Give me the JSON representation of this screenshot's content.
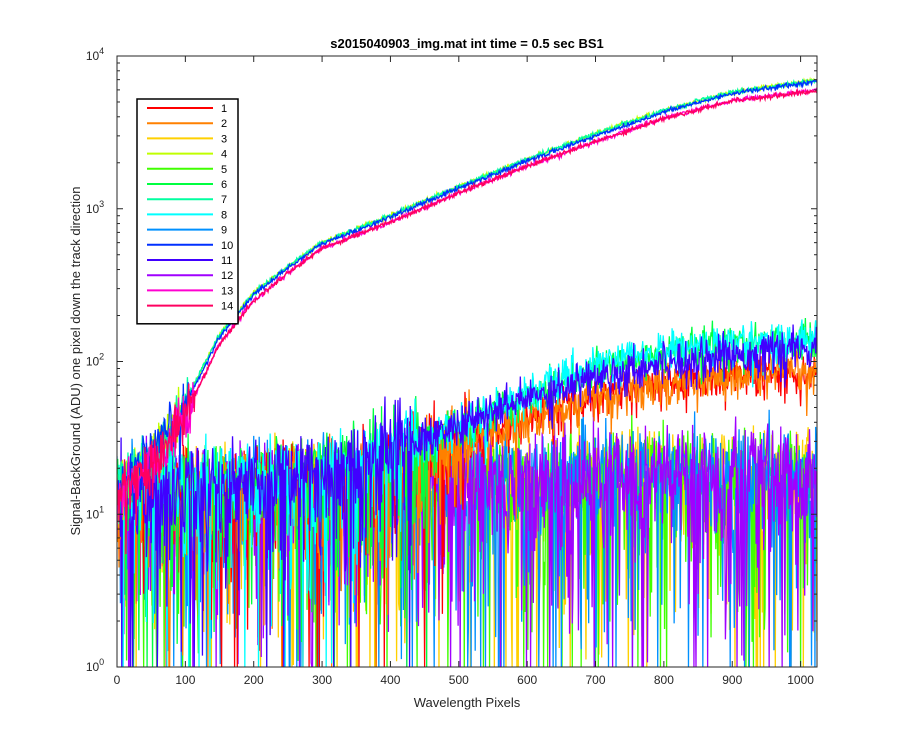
{
  "chart_data": {
    "type": "line",
    "title": "s2015040903_img.mat int time = 0.5 sec   BS1",
    "xlabel": "Wavelength Pixels",
    "ylabel": "Signal-BackGround (ADU) one pixel down the track direction",
    "xlim": [
      0,
      1024
    ],
    "ylim": [
      1,
      10000
    ],
    "yscale": "log",
    "xticks": [
      0,
      100,
      200,
      300,
      400,
      500,
      600,
      700,
      800,
      900,
      1000
    ],
    "yticks": [
      {
        "value": 1,
        "base": "10",
        "exp": "0"
      },
      {
        "value": 10,
        "base": "10",
        "exp": "1"
      },
      {
        "value": 100,
        "base": "10",
        "exp": "2"
      },
      {
        "value": 1000,
        "base": "10",
        "exp": "3"
      },
      {
        "value": 10000,
        "base": "10",
        "exp": "4"
      }
    ],
    "grid": false,
    "legend_position": "top-left",
    "series": [
      {
        "name": "1",
        "color": "#ff0000",
        "profile": "mid",
        "level": [
          [
            0,
            12
          ],
          [
            300,
            14
          ],
          [
            400,
            20
          ],
          [
            500,
            28
          ],
          [
            600,
            42
          ],
          [
            700,
            60
          ],
          [
            800,
            72
          ],
          [
            900,
            82
          ],
          [
            1024,
            85
          ]
        ]
      },
      {
        "name": "2",
        "color": "#ff8000",
        "profile": "mid",
        "level": [
          [
            0,
            12
          ],
          [
            300,
            14
          ],
          [
            400,
            20
          ],
          [
            500,
            28
          ],
          [
            600,
            42
          ],
          [
            700,
            60
          ],
          [
            800,
            72
          ],
          [
            900,
            82
          ],
          [
            1024,
            85
          ]
        ]
      },
      {
        "name": "3",
        "color": "#ffd000",
        "profile": "flat",
        "level": [
          [
            0,
            12
          ],
          [
            500,
            16
          ],
          [
            800,
            18
          ],
          [
            1024,
            17
          ]
        ]
      },
      {
        "name": "4",
        "color": "#c0ff00",
        "profile": "high",
        "level": [
          [
            0,
            15
          ],
          [
            30,
            20
          ],
          [
            60,
            28
          ],
          [
            100,
            55
          ],
          [
            150,
            150
          ],
          [
            200,
            280
          ],
          [
            250,
            420
          ],
          [
            300,
            600
          ],
          [
            400,
            900
          ],
          [
            500,
            1400
          ],
          [
            600,
            2100
          ],
          [
            700,
            3100
          ],
          [
            800,
            4400
          ],
          [
            900,
            5800
          ],
          [
            1024,
            7000
          ]
        ]
      },
      {
        "name": "5",
        "color": "#40ff00",
        "profile": "flat",
        "level": [
          [
            0,
            12
          ],
          [
            500,
            16
          ],
          [
            800,
            18
          ],
          [
            1024,
            17
          ]
        ]
      },
      {
        "name": "6",
        "color": "#00ff40",
        "profile": "mid",
        "level": [
          [
            0,
            13
          ],
          [
            300,
            16
          ],
          [
            400,
            24
          ],
          [
            500,
            36
          ],
          [
            600,
            60
          ],
          [
            700,
            90
          ],
          [
            800,
            115
          ],
          [
            900,
            130
          ],
          [
            1024,
            140
          ]
        ]
      },
      {
        "name": "7",
        "color": "#00ffa0",
        "profile": "high",
        "level": [
          [
            0,
            15
          ],
          [
            30,
            20
          ],
          [
            60,
            28
          ],
          [
            100,
            55
          ],
          [
            150,
            150
          ],
          [
            200,
            280
          ],
          [
            250,
            420
          ],
          [
            300,
            600
          ],
          [
            400,
            900
          ],
          [
            500,
            1400
          ],
          [
            600,
            2100
          ],
          [
            700,
            3100
          ],
          [
            800,
            4400
          ],
          [
            900,
            5800
          ],
          [
            1024,
            6900
          ]
        ]
      },
      {
        "name": "8",
        "color": "#00ffff",
        "profile": "mid",
        "level": [
          [
            0,
            13
          ],
          [
            300,
            17
          ],
          [
            400,
            26
          ],
          [
            500,
            38
          ],
          [
            600,
            62
          ],
          [
            700,
            92
          ],
          [
            800,
            118
          ],
          [
            900,
            132
          ],
          [
            1024,
            140
          ]
        ]
      },
      {
        "name": "9",
        "color": "#0090ff",
        "profile": "flat",
        "level": [
          [
            0,
            12
          ],
          [
            500,
            16
          ],
          [
            800,
            18
          ],
          [
            1024,
            17
          ]
        ]
      },
      {
        "name": "10",
        "color": "#0030ff",
        "profile": "high",
        "level": [
          [
            0,
            15
          ],
          [
            30,
            20
          ],
          [
            60,
            27
          ],
          [
            100,
            52
          ],
          [
            150,
            145
          ],
          [
            200,
            275
          ],
          [
            250,
            410
          ],
          [
            300,
            590
          ],
          [
            400,
            880
          ],
          [
            500,
            1370
          ],
          [
            600,
            2050
          ],
          [
            700,
            3000
          ],
          [
            800,
            4300
          ],
          [
            900,
            5700
          ],
          [
            1024,
            6800
          ]
        ]
      },
      {
        "name": "11",
        "color": "#4000ff",
        "profile": "mid",
        "level": [
          [
            0,
            13
          ],
          [
            300,
            18
          ],
          [
            400,
            27
          ],
          [
            500,
            38
          ],
          [
            600,
            58
          ],
          [
            700,
            80
          ],
          [
            800,
            100
          ],
          [
            900,
            112
          ],
          [
            1024,
            120
          ]
        ]
      },
      {
        "name": "12",
        "color": "#a000ff",
        "profile": "flat",
        "level": [
          [
            0,
            12
          ],
          [
            500,
            16
          ],
          [
            800,
            18
          ],
          [
            1024,
            17
          ]
        ]
      },
      {
        "name": "13",
        "color": "#ff00d0",
        "profile": "high",
        "level": [
          [
            0,
            14
          ],
          [
            30,
            18
          ],
          [
            60,
            24
          ],
          [
            100,
            45
          ],
          [
            150,
            130
          ],
          [
            200,
            250
          ],
          [
            250,
            380
          ],
          [
            300,
            550
          ],
          [
            400,
            820
          ],
          [
            500,
            1270
          ],
          [
            600,
            1900
          ],
          [
            700,
            2750
          ],
          [
            800,
            3900
          ],
          [
            900,
            5100
          ],
          [
            1024,
            6000
          ]
        ]
      },
      {
        "name": "14",
        "color": "#ff0060",
        "profile": "high",
        "level": [
          [
            0,
            14
          ],
          [
            30,
            18
          ],
          [
            60,
            24
          ],
          [
            100,
            45
          ],
          [
            150,
            130
          ],
          [
            200,
            250
          ],
          [
            250,
            380
          ],
          [
            300,
            550
          ],
          [
            400,
            820
          ],
          [
            500,
            1270
          ],
          [
            600,
            1900
          ],
          [
            700,
            2750
          ],
          [
            800,
            3900
          ],
          [
            900,
            5100
          ],
          [
            1024,
            5900
          ]
        ]
      }
    ]
  }
}
